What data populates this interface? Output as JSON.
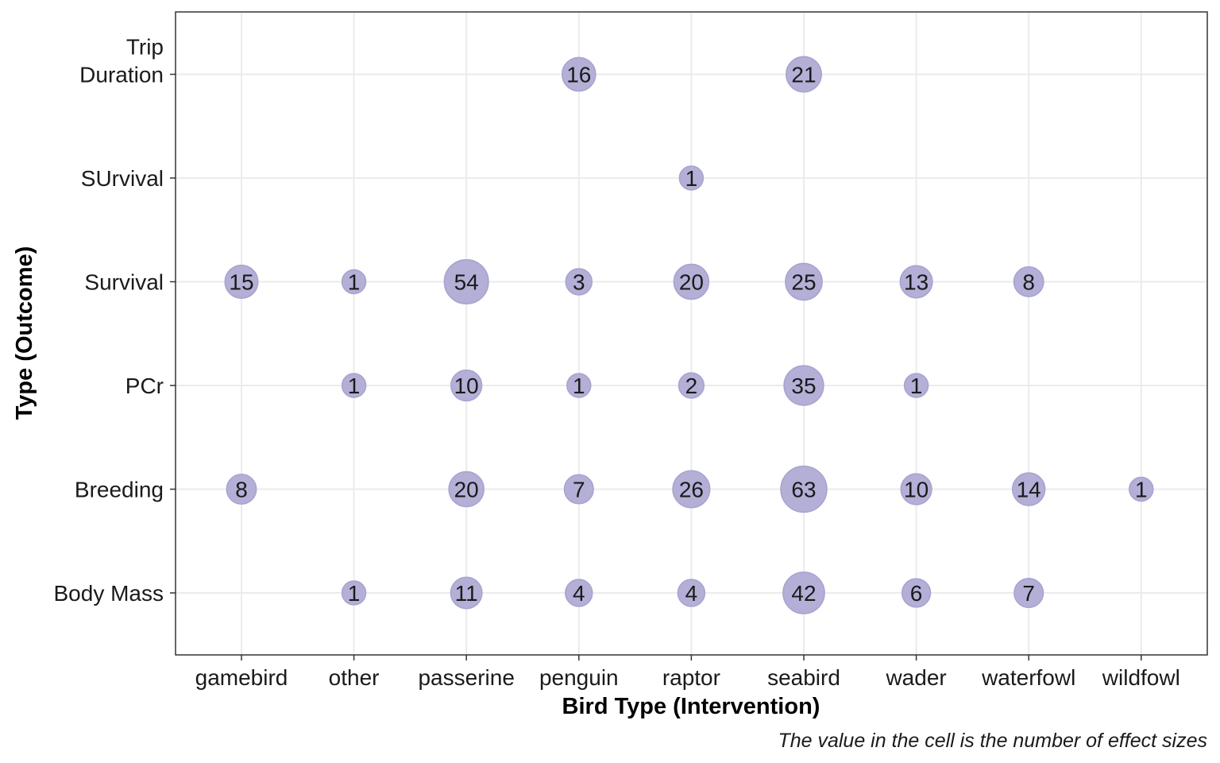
{
  "chart_data": {
    "type": "scatter",
    "xlabel": "Bird Type (Intervention)",
    "ylabel": "Type (Outcome)",
    "caption": "The value in the cell is the number of effect sizes",
    "x_categories": [
      "gamebird",
      "other",
      "passerine",
      "penguin",
      "raptor",
      "seabird",
      "wader",
      "waterfowl",
      "wildfowl"
    ],
    "y_categories": [
      {
        "lines": [
          "Body Mass"
        ]
      },
      {
        "lines": [
          "Breeding"
        ]
      },
      {
        "lines": [
          "PCr"
        ]
      },
      {
        "lines": [
          "Survival"
        ]
      },
      {
        "lines": [
          "SUrvival"
        ]
      },
      {
        "lines": [
          "Trip",
          "Duration"
        ]
      }
    ],
    "points": [
      {
        "x": "penguin",
        "y": 5,
        "value": 16
      },
      {
        "x": "seabird",
        "y": 5,
        "value": 21
      },
      {
        "x": "raptor",
        "y": 4,
        "value": 1
      },
      {
        "x": "gamebird",
        "y": 3,
        "value": 15
      },
      {
        "x": "other",
        "y": 3,
        "value": 1
      },
      {
        "x": "passerine",
        "y": 3,
        "value": 54
      },
      {
        "x": "penguin",
        "y": 3,
        "value": 3
      },
      {
        "x": "raptor",
        "y": 3,
        "value": 20
      },
      {
        "x": "seabird",
        "y": 3,
        "value": 25
      },
      {
        "x": "wader",
        "y": 3,
        "value": 13
      },
      {
        "x": "waterfowl",
        "y": 3,
        "value": 8
      },
      {
        "x": "other",
        "y": 2,
        "value": 1
      },
      {
        "x": "passerine",
        "y": 2,
        "value": 10
      },
      {
        "x": "penguin",
        "y": 2,
        "value": 1
      },
      {
        "x": "raptor",
        "y": 2,
        "value": 2
      },
      {
        "x": "seabird",
        "y": 2,
        "value": 35
      },
      {
        "x": "wader",
        "y": 2,
        "value": 1
      },
      {
        "x": "gamebird",
        "y": 1,
        "value": 8
      },
      {
        "x": "passerine",
        "y": 1,
        "value": 20
      },
      {
        "x": "penguin",
        "y": 1,
        "value": 7
      },
      {
        "x": "raptor",
        "y": 1,
        "value": 26
      },
      {
        "x": "seabird",
        "y": 1,
        "value": 63
      },
      {
        "x": "wader",
        "y": 1,
        "value": 10
      },
      {
        "x": "waterfowl",
        "y": 1,
        "value": 14
      },
      {
        "x": "wildfowl",
        "y": 1,
        "value": 1
      },
      {
        "x": "other",
        "y": 0,
        "value": 1
      },
      {
        "x": "passerine",
        "y": 0,
        "value": 11
      },
      {
        "x": "penguin",
        "y": 0,
        "value": 4
      },
      {
        "x": "raptor",
        "y": 0,
        "value": 4
      },
      {
        "x": "seabird",
        "y": 0,
        "value": 42
      },
      {
        "x": "wader",
        "y": 0,
        "value": 6
      },
      {
        "x": "waterfowl",
        "y": 0,
        "value": 7
      }
    ],
    "bubble_color": "#b3afd6",
    "bubble_stroke": "#a7a3cf",
    "grid": true,
    "legend": "none"
  }
}
